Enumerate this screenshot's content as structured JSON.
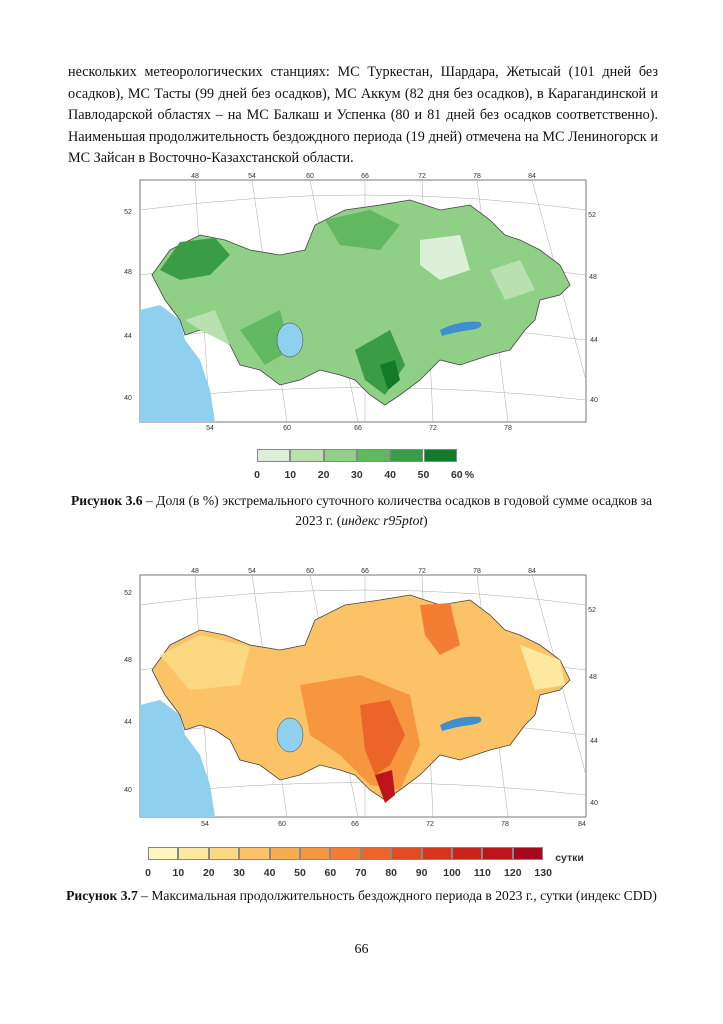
{
  "paragraph": "нескольких метеорологических станциях: МС Туркестан, Шардара, Жетысай (101 дней без осадков), МС Тасты (99 дней без осадков), МС Аккум (82 дня без осадков), в Карагандинской и Павлодарской областях – на МС Балкаш и Успенка (80 и 81 дней без осадков соответственно). Наименьшая продолжительность бездождного периода (19 дней) отмечена на МС Лениногорск и МС Зайсан в Восточно-Казахстанской области.",
  "figures": [
    {
      "graticule": {
        "top": [
          "48",
          "54",
          "60",
          "66",
          "72",
          "78",
          "84"
        ],
        "left": [
          "52",
          "48",
          "44",
          "40"
        ],
        "right": [
          "52",
          "48",
          "44",
          "40"
        ],
        "bottom": [
          "54",
          "60",
          "66",
          "72",
          "78"
        ]
      },
      "legend": {
        "labels": [
          "0",
          "10",
          "20",
          "30",
          "40",
          "50",
          "60"
        ],
        "unit": "%",
        "colors": [
          "#dcf0d8",
          "#b9e1b0",
          "#8fcf86",
          "#62b860",
          "#3a9c44",
          "#137a2a"
        ]
      },
      "caption": {
        "label": "Рисунок 3.6",
        "text": " – Доля (в %) экстремального суточного количества осадков в годовой сумме осадков за 2023 г. (",
        "index": "индекс r95ptot",
        "close": ")"
      }
    },
    {
      "graticule": {
        "top": [
          "48",
          "54",
          "60",
          "66",
          "72",
          "78",
          "84"
        ],
        "left": [
          "52",
          "48",
          "44",
          "40"
        ],
        "right": [
          "52",
          "48",
          "44",
          "40"
        ],
        "bottom": [
          "54",
          "60",
          "66",
          "72",
          "78",
          "84"
        ]
      },
      "legend": {
        "labels": [
          "0",
          "10",
          "20",
          "30",
          "40",
          "50",
          "60",
          "70",
          "80",
          "90",
          "100",
          "110",
          "120",
          "130"
        ],
        "unit": "сутки",
        "colors": [
          "#fdf6c0",
          "#fde9a0",
          "#fdd882",
          "#fcc366",
          "#f9ad4f",
          "#f6963f",
          "#f27d33",
          "#ec6427",
          "#e24a1f",
          "#d8341d",
          "#cc221c",
          "#bd141c",
          "#a8081c"
        ]
      },
      "caption": {
        "label": "Рисунок 3.7",
        "text": " – Максимальная продолжительность бездождного периода в 2023 г., сутки (индекс CDD)"
      }
    }
  ],
  "page_number": "66"
}
